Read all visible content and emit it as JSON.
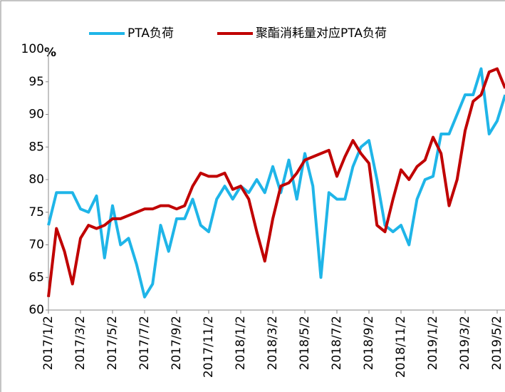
{
  "chart_data": {
    "type": "line",
    "y_unit": "%",
    "categories": [
      "2017/1/2",
      null,
      null,
      null,
      "2017/3/2",
      null,
      null,
      null,
      "2017/5/2",
      null,
      null,
      null,
      "2017/7/2",
      null,
      null,
      null,
      "2017/9/2",
      null,
      null,
      null,
      "2017/11/2",
      null,
      null,
      null,
      "2018/1/2",
      null,
      null,
      null,
      "2018/3/2",
      null,
      null,
      null,
      "2018/5/2",
      null,
      null,
      null,
      "2018/7/2",
      null,
      null,
      null,
      "2018/9/2",
      null,
      null,
      null,
      "2018/11/2",
      null,
      null,
      null,
      "2019/1/2",
      null,
      null,
      null,
      "2019/3/2",
      null,
      null,
      null,
      "2019/5/2",
      null
    ],
    "series": [
      {
        "name": "PTA负荷",
        "color": "#1fb5e8",
        "values": [
          73,
          78,
          78,
          78,
          75.5,
          75,
          77.5,
          68,
          76,
          70,
          71,
          67,
          62,
          64,
          73,
          69,
          74,
          74,
          77,
          73,
          72,
          77,
          79,
          77,
          79,
          78,
          80,
          78,
          82,
          78,
          83,
          77,
          84,
          79,
          65,
          78,
          77,
          77,
          82,
          85,
          86,
          80,
          73,
          72,
          73,
          70,
          77,
          80,
          80.5,
          87,
          87,
          90,
          93,
          93,
          97,
          87,
          89,
          93
        ]
      },
      {
        "name": "聚酯消耗量对应PTA负荷",
        "color": "#c00000",
        "values": [
          62,
          72.5,
          69,
          64,
          71,
          73,
          72.5,
          73,
          74,
          74,
          74.5,
          75,
          75.5,
          75.5,
          76,
          76,
          75.5,
          76,
          79,
          81,
          80.5,
          80.5,
          81,
          78.5,
          79,
          77,
          72,
          67.5,
          74,
          79,
          79.5,
          81,
          83,
          83.5,
          84,
          84.5,
          80.5,
          83.5,
          86,
          84,
          82.5,
          73,
          72,
          77,
          81.5,
          80,
          82,
          83,
          86.5,
          84,
          76,
          80,
          87.5,
          92,
          93,
          96.5,
          97,
          94
        ]
      }
    ],
    "ylim": [
      60,
      100
    ],
    "yticks": [
      60,
      65,
      70,
      75,
      80,
      85,
      90,
      95,
      100
    ],
    "legend": "top"
  }
}
